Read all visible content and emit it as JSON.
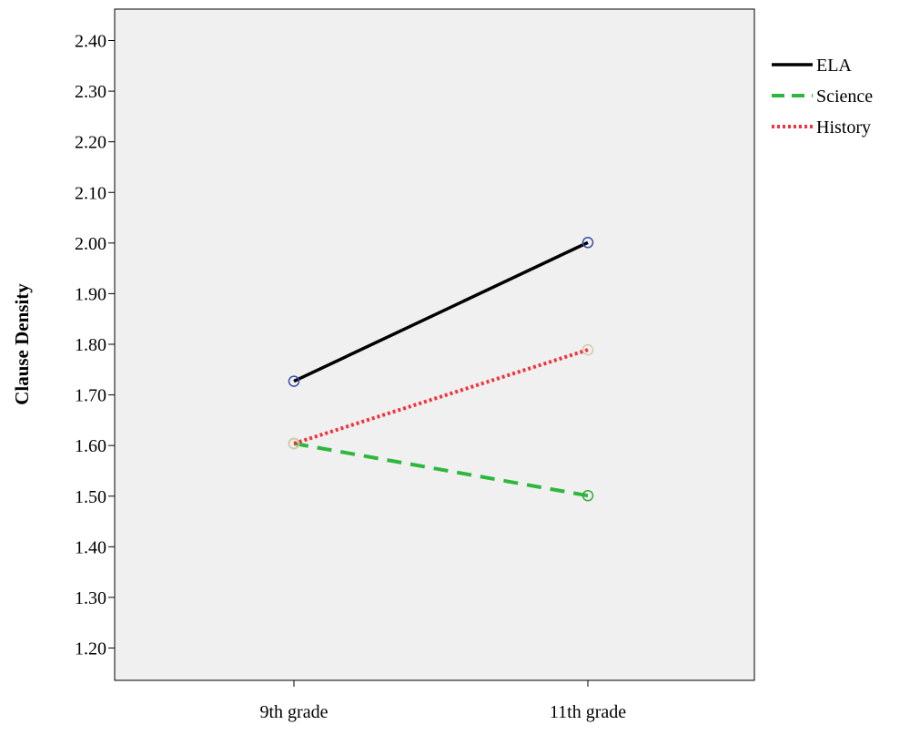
{
  "chart_data": {
    "type": "line",
    "title": "",
    "xlabel": "",
    "ylabel": "Clause Density",
    "categories": [
      "9th grade",
      "11th grade"
    ],
    "ylim": [
      1.15,
      2.45
    ],
    "yticks": [
      1.2,
      1.3,
      1.4,
      1.5,
      1.6,
      1.7,
      1.8,
      1.9,
      2.0,
      2.1,
      2.2,
      2.3,
      2.4
    ],
    "ytick_labels": [
      "1.20",
      "1.30",
      "1.40",
      "1.50",
      "1.60",
      "1.70",
      "1.80",
      "1.90",
      "2.00",
      "2.10",
      "2.20",
      "2.30",
      "2.40"
    ],
    "grid": false,
    "legend_position": "right-top",
    "plot_background": "#f0f0f0",
    "series": [
      {
        "name": "ELA",
        "values": [
          1.727,
          2.001
        ],
        "line_color": "#000000",
        "line_style": "solid",
        "marker_color": "#3d4fa8"
      },
      {
        "name": "Science",
        "values": [
          1.604,
          1.501
        ],
        "line_color": "#2db83d",
        "line_style": "dashed",
        "marker_color": "#3aa83a"
      },
      {
        "name": "History",
        "values": [
          1.604,
          1.789
        ],
        "line_color": "#f2323c",
        "line_style": "dotted",
        "marker_color": "#d8c9a8"
      }
    ]
  }
}
